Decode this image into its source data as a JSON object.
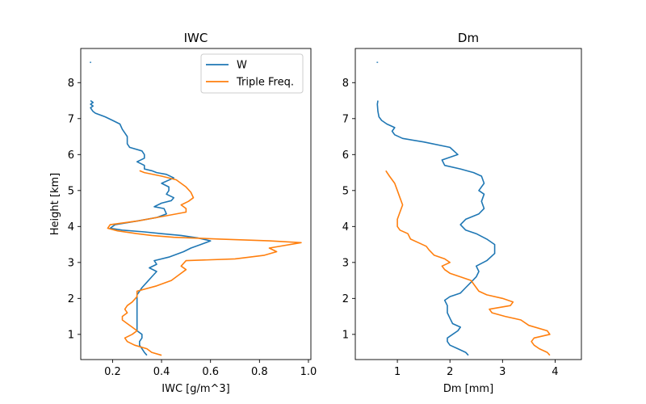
{
  "chart_data": [
    {
      "type": "line",
      "title": "IWC",
      "xlabel": "IWC [g/m^3]",
      "ylabel": "Height [km]",
      "xlim": [
        0.07,
        1.01
      ],
      "ylim": [
        0.3,
        8.95
      ],
      "xticks": [
        "0.2",
        "0.4",
        "0.6",
        "0.8",
        "1.0"
      ],
      "yticks": [
        "1",
        "2",
        "3",
        "4",
        "5",
        "6",
        "7",
        "8"
      ],
      "legend": {
        "placement": "top-right",
        "entries": [
          "W",
          "Triple Freq."
        ]
      },
      "series": [
        {
          "name": "W",
          "color": "#1f77b4",
          "points": [
            [
              0.34,
              0.42
            ],
            [
              0.33,
              0.5
            ],
            [
              0.32,
              0.6
            ],
            [
              0.31,
              0.7
            ],
            [
              0.31,
              0.8
            ],
            [
              0.32,
              0.9
            ],
            [
              0.32,
              1.0
            ],
            [
              0.3,
              1.1
            ],
            [
              0.3,
              1.3
            ],
            [
              0.3,
              1.5
            ],
            [
              0.3,
              1.7
            ],
            [
              0.3,
              1.9
            ],
            [
              0.3,
              2.1
            ],
            [
              0.32,
              2.3
            ],
            [
              0.34,
              2.45
            ],
            [
              0.36,
              2.6
            ],
            [
              0.38,
              2.75
            ],
            [
              0.35,
              2.85
            ],
            [
              0.38,
              2.95
            ],
            [
              0.37,
              3.05
            ],
            [
              0.43,
              3.15
            ],
            [
              0.49,
              3.3
            ],
            [
              0.52,
              3.4
            ],
            [
              0.56,
              3.5
            ],
            [
              0.6,
              3.6
            ],
            [
              0.55,
              3.68
            ],
            [
              0.48,
              3.75
            ],
            [
              0.4,
              3.8
            ],
            [
              0.33,
              3.85
            ],
            [
              0.24,
              3.9
            ],
            [
              0.19,
              3.95
            ],
            [
              0.21,
              4.05
            ],
            [
              0.3,
              4.15
            ],
            [
              0.38,
              4.25
            ],
            [
              0.42,
              4.35
            ],
            [
              0.41,
              4.5
            ],
            [
              0.37,
              4.55
            ],
            [
              0.4,
              4.65
            ],
            [
              0.44,
              4.72
            ],
            [
              0.45,
              4.8
            ],
            [
              0.42,
              4.9
            ],
            [
              0.43,
              5.0
            ],
            [
              0.43,
              5.1
            ],
            [
              0.4,
              5.2
            ],
            [
              0.45,
              5.35
            ],
            [
              0.42,
              5.45
            ],
            [
              0.38,
              5.5
            ],
            [
              0.36,
              5.55
            ],
            [
              0.33,
              5.6
            ],
            [
              0.33,
              5.7
            ],
            [
              0.3,
              5.8
            ],
            [
              0.33,
              5.9
            ],
            [
              0.33,
              6.0
            ],
            [
              0.32,
              6.1
            ],
            [
              0.27,
              6.2
            ],
            [
              0.26,
              6.3
            ],
            [
              0.26,
              6.4
            ],
            [
              0.26,
              6.5
            ],
            [
              0.25,
              6.6
            ],
            [
              0.24,
              6.7
            ],
            [
              0.23,
              6.85
            ],
            [
              0.2,
              6.95
            ],
            [
              0.17,
              7.05
            ],
            [
              0.13,
              7.15
            ],
            [
              0.12,
              7.2
            ],
            [
              0.11,
              7.3
            ],
            [
              0.12,
              7.35
            ],
            [
              0.11,
              7.4
            ],
            [
              0.12,
              7.45
            ],
            [
              0.11,
              7.5
            ]
          ],
          "extra_points": [
            [
              0.11,
              8.55
            ],
            [
              0.11,
              8.58
            ]
          ]
        },
        {
          "name": "Triple Freq.",
          "color": "#ff7f0e",
          "points": [
            [
              0.4,
              0.42
            ],
            [
              0.36,
              0.5
            ],
            [
              0.34,
              0.6
            ],
            [
              0.29,
              0.7
            ],
            [
              0.26,
              0.8
            ],
            [
              0.25,
              0.9
            ],
            [
              0.28,
              1.0
            ],
            [
              0.3,
              1.1
            ],
            [
              0.28,
              1.2
            ],
            [
              0.26,
              1.3
            ],
            [
              0.24,
              1.4
            ],
            [
              0.24,
              1.5
            ],
            [
              0.26,
              1.6
            ],
            [
              0.25,
              1.7
            ],
            [
              0.26,
              1.8
            ],
            [
              0.28,
              1.9
            ],
            [
              0.3,
              2.05
            ],
            [
              0.3,
              2.2
            ],
            [
              0.38,
              2.35
            ],
            [
              0.44,
              2.5
            ],
            [
              0.47,
              2.65
            ],
            [
              0.5,
              2.8
            ],
            [
              0.48,
              2.9
            ],
            [
              0.5,
              3.05
            ],
            [
              0.7,
              3.1
            ],
            [
              0.82,
              3.2
            ],
            [
              0.87,
              3.3
            ],
            [
              0.84,
              3.4
            ],
            [
              0.97,
              3.55
            ],
            [
              0.84,
              3.6
            ],
            [
              0.64,
              3.65
            ],
            [
              0.45,
              3.7
            ],
            [
              0.36,
              3.75
            ],
            [
              0.3,
              3.8
            ],
            [
              0.22,
              3.88
            ],
            [
              0.18,
              3.95
            ],
            [
              0.19,
              4.05
            ],
            [
              0.3,
              4.15
            ],
            [
              0.42,
              4.3
            ],
            [
              0.5,
              4.4
            ],
            [
              0.5,
              4.5
            ],
            [
              0.48,
              4.6
            ],
            [
              0.51,
              4.7
            ],
            [
              0.53,
              4.8
            ],
            [
              0.52,
              4.95
            ],
            [
              0.5,
              5.1
            ],
            [
              0.46,
              5.3
            ],
            [
              0.4,
              5.4
            ],
            [
              0.33,
              5.5
            ],
            [
              0.31,
              5.55
            ]
          ]
        }
      ]
    },
    {
      "type": "line",
      "title": "Dm",
      "xlabel": "Dm [mm]",
      "ylabel": "",
      "xlim": [
        0.2,
        4.5
      ],
      "ylim": [
        0.3,
        8.95
      ],
      "xticks": [
        "1",
        "2",
        "3",
        "4"
      ],
      "yticks": [
        "1",
        "2",
        "3",
        "4",
        "5",
        "6",
        "7",
        "8"
      ],
      "series": [
        {
          "name": "W",
          "color": "#1f77b4",
          "points": [
            [
              2.35,
              0.42
            ],
            [
              2.3,
              0.5
            ],
            [
              2.15,
              0.6
            ],
            [
              2.0,
              0.7
            ],
            [
              1.95,
              0.8
            ],
            [
              1.95,
              0.9
            ],
            [
              2.05,
              1.0
            ],
            [
              2.15,
              1.1
            ],
            [
              2.2,
              1.2
            ],
            [
              2.05,
              1.3
            ],
            [
              2.0,
              1.45
            ],
            [
              1.95,
              1.6
            ],
            [
              1.95,
              1.8
            ],
            [
              1.9,
              1.95
            ],
            [
              2.0,
              2.05
            ],
            [
              2.2,
              2.15
            ],
            [
              2.3,
              2.3
            ],
            [
              2.4,
              2.45
            ],
            [
              2.5,
              2.6
            ],
            [
              2.55,
              2.75
            ],
            [
              2.5,
              2.9
            ],
            [
              2.7,
              3.05
            ],
            [
              2.85,
              3.25
            ],
            [
              2.85,
              3.5
            ],
            [
              2.7,
              3.65
            ],
            [
              2.5,
              3.8
            ],
            [
              2.3,
              3.9
            ],
            [
              2.2,
              4.05
            ],
            [
              2.3,
              4.2
            ],
            [
              2.55,
              4.35
            ],
            [
              2.65,
              4.5
            ],
            [
              2.6,
              4.7
            ],
            [
              2.65,
              4.9
            ],
            [
              2.55,
              5.0
            ],
            [
              2.65,
              5.2
            ],
            [
              2.6,
              5.4
            ],
            [
              2.45,
              5.5
            ],
            [
              2.2,
              5.6
            ],
            [
              1.9,
              5.7
            ],
            [
              1.85,
              5.85
            ],
            [
              2.15,
              6.0
            ],
            [
              2.0,
              6.2
            ],
            [
              1.5,
              6.35
            ],
            [
              1.1,
              6.45
            ],
            [
              0.95,
              6.55
            ],
            [
              0.9,
              6.65
            ],
            [
              0.95,
              6.75
            ],
            [
              0.8,
              6.85
            ],
            [
              0.7,
              6.95
            ],
            [
              0.65,
              7.05
            ],
            [
              0.63,
              7.2
            ],
            [
              0.62,
              7.4
            ],
            [
              0.63,
              7.5
            ]
          ],
          "extra_points": [
            [
              0.62,
              8.55
            ],
            [
              0.62,
              8.58
            ]
          ]
        },
        {
          "name": "Triple Freq.",
          "color": "#ff7f0e",
          "points": [
            [
              3.9,
              0.42
            ],
            [
              3.85,
              0.5
            ],
            [
              3.7,
              0.6
            ],
            [
              3.6,
              0.7
            ],
            [
              3.55,
              0.8
            ],
            [
              3.6,
              0.9
            ],
            [
              3.9,
              1.0
            ],
            [
              3.85,
              1.1
            ],
            [
              3.5,
              1.25
            ],
            [
              3.35,
              1.4
            ],
            [
              3.05,
              1.5
            ],
            [
              2.8,
              1.6
            ],
            [
              2.75,
              1.7
            ],
            [
              3.15,
              1.8
            ],
            [
              3.2,
              1.9
            ],
            [
              3.0,
              2.0
            ],
            [
              2.7,
              2.1
            ],
            [
              2.55,
              2.2
            ],
            [
              2.5,
              2.3
            ],
            [
              2.4,
              2.5
            ],
            [
              2.2,
              2.6
            ],
            [
              2.0,
              2.7
            ],
            [
              1.9,
              2.8
            ],
            [
              1.85,
              2.9
            ],
            [
              2.0,
              3.0
            ],
            [
              1.9,
              3.1
            ],
            [
              1.7,
              3.2
            ],
            [
              1.6,
              3.35
            ],
            [
              1.55,
              3.45
            ],
            [
              1.4,
              3.55
            ],
            [
              1.25,
              3.65
            ],
            [
              1.2,
              3.8
            ],
            [
              1.05,
              3.9
            ],
            [
              1.0,
              4.0
            ],
            [
              1.0,
              4.2
            ],
            [
              1.05,
              4.4
            ],
            [
              1.1,
              4.6
            ],
            [
              1.05,
              4.8
            ],
            [
              1.0,
              5.0
            ],
            [
              0.95,
              5.2
            ],
            [
              0.85,
              5.4
            ],
            [
              0.78,
              5.55
            ]
          ]
        }
      ]
    }
  ]
}
